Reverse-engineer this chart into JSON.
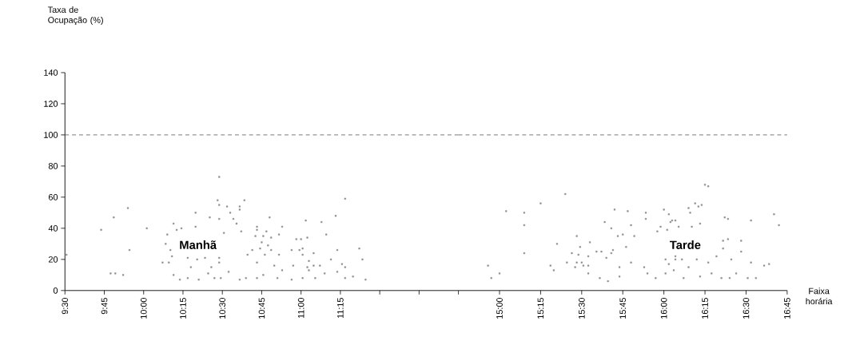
{
  "chart_data": [
    {
      "type": "scatter",
      "ylabel": "Taxa de Ocupação (%)",
      "xlim": [
        9.5,
        12.0
      ],
      "ylim": [
        0,
        140
      ],
      "xticks": [
        {
          "value": 9.5,
          "label": "9:30"
        },
        {
          "value": 9.75,
          "label": "9:45"
        },
        {
          "value": 10.0,
          "label": "10:00"
        },
        {
          "value": 10.25,
          "label": "10:15"
        },
        {
          "value": 10.5,
          "label": "10:30"
        },
        {
          "value": 10.75,
          "label": "10:45"
        },
        {
          "value": 11.0,
          "label": "11:00"
        },
        {
          "value": 11.25,
          "label": "11:15"
        },
        {
          "value": 11.5,
          "label": null
        },
        {
          "value": 11.75,
          "label": null
        },
        {
          "value": 12.0,
          "label": null
        }
      ],
      "yticks": [
        0,
        20,
        40,
        60,
        80,
        100,
        120,
        140
      ],
      "marker": "square",
      "series": [
        {
          "color": "#8c8c8c",
          "x": [
            9.51,
            9.73,
            9.79,
            9.82,
            9.81,
            9.87,
            9.9,
            9.91,
            10.02,
            10.12,
            10.14,
            10.15,
            10.16,
            10.17,
            10.18,
            10.19,
            10.19,
            10.21,
            10.23,
            10.24,
            10.28,
            10.28,
            10.3,
            10.33,
            10.33,
            10.34,
            10.35,
            10.39,
            10.41,
            10.42,
            10.43,
            10.45,
            10.47,
            10.48,
            10.48,
            10.48,
            10.48,
            10.48,
            10.49,
            10.51,
            10.53,
            10.54,
            10.55,
            10.57,
            10.59,
            10.61,
            10.61,
            10.61,
            10.62,
            10.64,
            10.65,
            10.66,
            10.69,
            10.72,
            10.72,
            10.71,
            10.72,
            10.72,
            10.74,
            10.75,
            10.76,
            10.76,
            10.77,
            10.78,
            10.79,
            10.8,
            10.81,
            10.81,
            10.83,
            10.85,
            10.86,
            10.86,
            10.88,
            10.88,
            10.94,
            10.94,
            10.95,
            10.97,
            10.99,
            11.0,
            11.01,
            11.01,
            11.01,
            11.03,
            11.04,
            11.05,
            11.04,
            11.05,
            11.08,
            11.08,
            11.09,
            11.12,
            11.13,
            11.15,
            11.16,
            11.19,
            11.22,
            11.23,
            11.23,
            11.26,
            11.28,
            11.28,
            11.28,
            11.33,
            11.37,
            11.39,
            11.41
          ],
          "values": [
            23,
            39,
            11,
            11,
            47,
            10,
            53,
            26,
            40,
            18,
            30,
            36,
            18,
            26,
            22,
            10,
            43,
            39,
            7,
            40,
            21,
            8,
            15,
            50,
            41,
            20,
            7,
            21,
            11,
            47,
            15,
            8,
            58,
            73,
            55,
            46,
            21,
            18,
            8,
            37,
            54,
            12,
            50,
            46,
            43,
            54,
            52,
            7,
            38,
            58,
            8,
            23,
            26,
            41,
            39,
            35,
            8,
            18,
            27,
            31,
            35,
            10,
            23,
            38,
            29,
            47,
            34,
            26,
            16,
            8,
            36,
            23,
            41,
            13,
            26,
            7,
            16,
            33,
            26,
            33,
            27,
            8,
            23,
            45,
            34,
            19,
            15,
            13,
            24,
            16,
            8,
            16,
            44,
            11,
            36,
            20,
            48,
            26,
            12,
            17,
            59,
            15,
            8,
            9,
            27,
            20,
            7
          ]
        }
      ],
      "ref_lines": [
        {
          "axis": "y",
          "value": 100,
          "color": "#555555",
          "line_style": "dashed"
        }
      ],
      "annotations": [
        "Manhã"
      ]
    },
    {
      "type": "scatter",
      "xlabel": "Faixa horária",
      "xlim": [
        14.75,
        16.75
      ],
      "ylim": [
        0,
        140
      ],
      "xticks": [
        {
          "value": 15.0,
          "label": "15:00"
        },
        {
          "value": 15.25,
          "label": "15:15"
        },
        {
          "value": 15.5,
          "label": "15:30"
        },
        {
          "value": 15.75,
          "label": "15:45"
        },
        {
          "value": 16.0,
          "label": "16:00"
        },
        {
          "value": 16.25,
          "label": "16:15"
        },
        {
          "value": 16.5,
          "label": "16:30"
        },
        {
          "value": 16.75,
          "label": "16:45"
        }
      ],
      "tick_labels": "x",
      "marker": "square",
      "series": [
        {
          "color": "#8c8c8c",
          "x": [
            14.93,
            14.95,
            15.0,
            15.04,
            15.15,
            15.15,
            15.15,
            15.25,
            15.31,
            15.33,
            15.35,
            15.4,
            15.41,
            15.44,
            15.46,
            15.47,
            15.47,
            15.48,
            15.49,
            15.5,
            15.51,
            15.54,
            15.54,
            15.54,
            15.55,
            15.59,
            15.61,
            15.62,
            15.64,
            15.65,
            15.66,
            15.68,
            15.68,
            15.69,
            15.7,
            15.72,
            15.73,
            15.73,
            15.75,
            15.77,
            15.78,
            15.8,
            15.8,
            15.82,
            15.88,
            15.89,
            15.89,
            15.9,
            15.95,
            15.96,
            15.98,
            16.0,
            16.01,
            16.01,
            16.02,
            16.03,
            16.04,
            16.03,
            16.05,
            16.06,
            16.07,
            16.07,
            16.07,
            16.09,
            16.11,
            16.12,
            16.15,
            16.15,
            16.16,
            16.17,
            16.19,
            16.2,
            16.21,
            16.22,
            16.22,
            16.23,
            16.25,
            16.27,
            16.27,
            16.29,
            16.32,
            16.35,
            16.36,
            16.36,
            16.37,
            16.39,
            16.39,
            16.4,
            16.41,
            16.44,
            16.47,
            16.47,
            16.51,
            16.53,
            16.53,
            16.56,
            16.61,
            16.64,
            16.67,
            16.7
          ],
          "values": [
            16,
            8,
            11,
            51,
            50,
            42,
            24,
            56,
            16,
            13,
            30,
            62,
            18,
            24,
            15,
            35,
            18,
            23,
            28,
            18,
            16,
            22,
            16,
            11,
            31,
            25,
            8,
            25,
            44,
            21,
            6,
            40,
            24,
            26,
            52,
            35,
            15,
            9,
            36,
            28,
            51,
            42,
            18,
            35,
            15,
            46,
            50,
            11,
            8,
            38,
            41,
            52,
            20,
            11,
            39,
            49,
            44,
            17,
            45,
            13,
            45,
            22,
            20,
            41,
            20,
            8,
            15,
            53,
            50,
            41,
            56,
            20,
            54,
            43,
            9,
            55,
            68,
            67,
            18,
            11,
            22,
            8,
            32,
            27,
            47,
            46,
            33,
            8,
            20,
            11,
            32,
            25,
            8,
            45,
            18,
            8,
            16,
            17,
            49,
            42
          ]
        }
      ],
      "ref_lines": [
        {
          "axis": "y",
          "value": 100,
          "color": "#555555",
          "line_style": "dashed"
        }
      ],
      "annotations": [
        "Tarde"
      ]
    }
  ]
}
